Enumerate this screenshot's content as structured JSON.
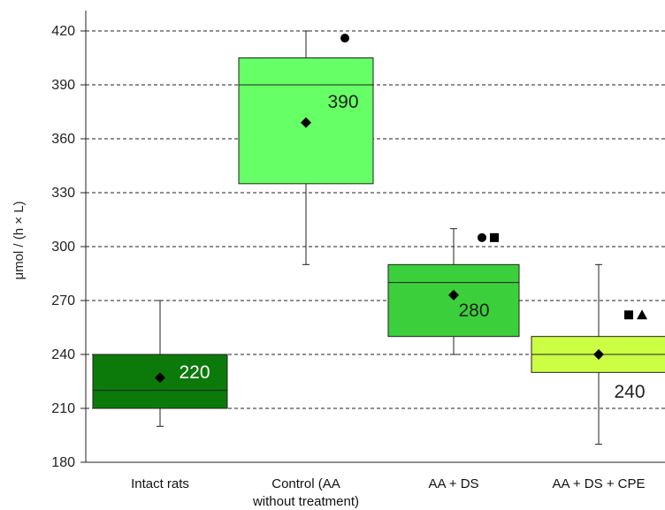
{
  "chart_data": {
    "type": "box",
    "title": "",
    "xlabel": "",
    "ylabel": "μmol / (h × L)",
    "ylim": [
      180,
      420
    ],
    "yticks": [
      180,
      210,
      240,
      270,
      300,
      330,
      360,
      390,
      420
    ],
    "grid": true,
    "categories": [
      {
        "lines": [
          "Intact rats"
        ]
      },
      {
        "lines": [
          "Control (AA",
          "without treatment)"
        ]
      },
      {
        "lines": [
          "AA + DS"
        ]
      },
      {
        "lines": [
          "AA + DS + CPE"
        ]
      }
    ],
    "boxes": [
      {
        "whisker_low": 200,
        "q1": 210,
        "median": 220,
        "q3": 240,
        "whisker_high": 270,
        "mean": 227,
        "median_label": "220",
        "fill": "#0b7a0b",
        "label_color": "#ffffff",
        "markers": []
      },
      {
        "whisker_low": 290,
        "q1": 335,
        "median": 390,
        "q3": 405,
        "whisker_high": 420,
        "mean": 369,
        "median_label": "390",
        "fill": "#66ff66",
        "label_color": "#222222",
        "markers": [
          "circle"
        ]
      },
      {
        "whisker_low": 240,
        "q1": 250,
        "median": 280,
        "q3": 290,
        "whisker_high": 310,
        "mean": 273,
        "median_label": "280",
        "fill": "#3ccf3c",
        "label_color": "#222222",
        "markers": [
          "circle",
          "square"
        ]
      },
      {
        "whisker_low": 190,
        "q1": 230,
        "median": 240,
        "q3": 250,
        "whisker_high": 290,
        "mean": 240,
        "median_label": "240",
        "fill": "#ccff44",
        "label_color": "#222222",
        "markers": [
          "square",
          "triangle"
        ]
      }
    ],
    "marker_values": [
      {
        "box": 1,
        "value": 416
      },
      {
        "box": 2,
        "value": 305
      },
      {
        "box": 3,
        "value": 262
      }
    ]
  }
}
